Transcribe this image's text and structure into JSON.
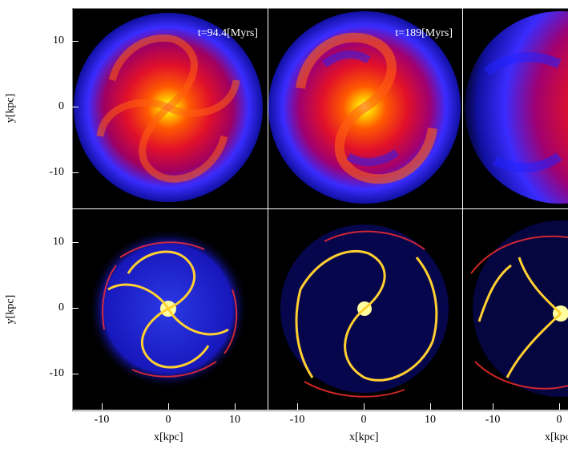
{
  "panels_top": [
    {
      "time_label": "t=94.4[Myrs]"
    },
    {
      "time_label": "t=189[Myrs]"
    },
    {
      "time_label": ""
    }
  ],
  "axes": {
    "ylabel_top": "y[kpc]",
    "ylabel_bottom": "y[kpc]",
    "xlabel_1": "x[kpc]",
    "xlabel_2": "x[kpc]",
    "xlabel_3": "x[kpc]",
    "yticks": [
      "10",
      "0",
      "-10"
    ],
    "xticks": [
      "-10",
      "0",
      "10"
    ]
  }
}
